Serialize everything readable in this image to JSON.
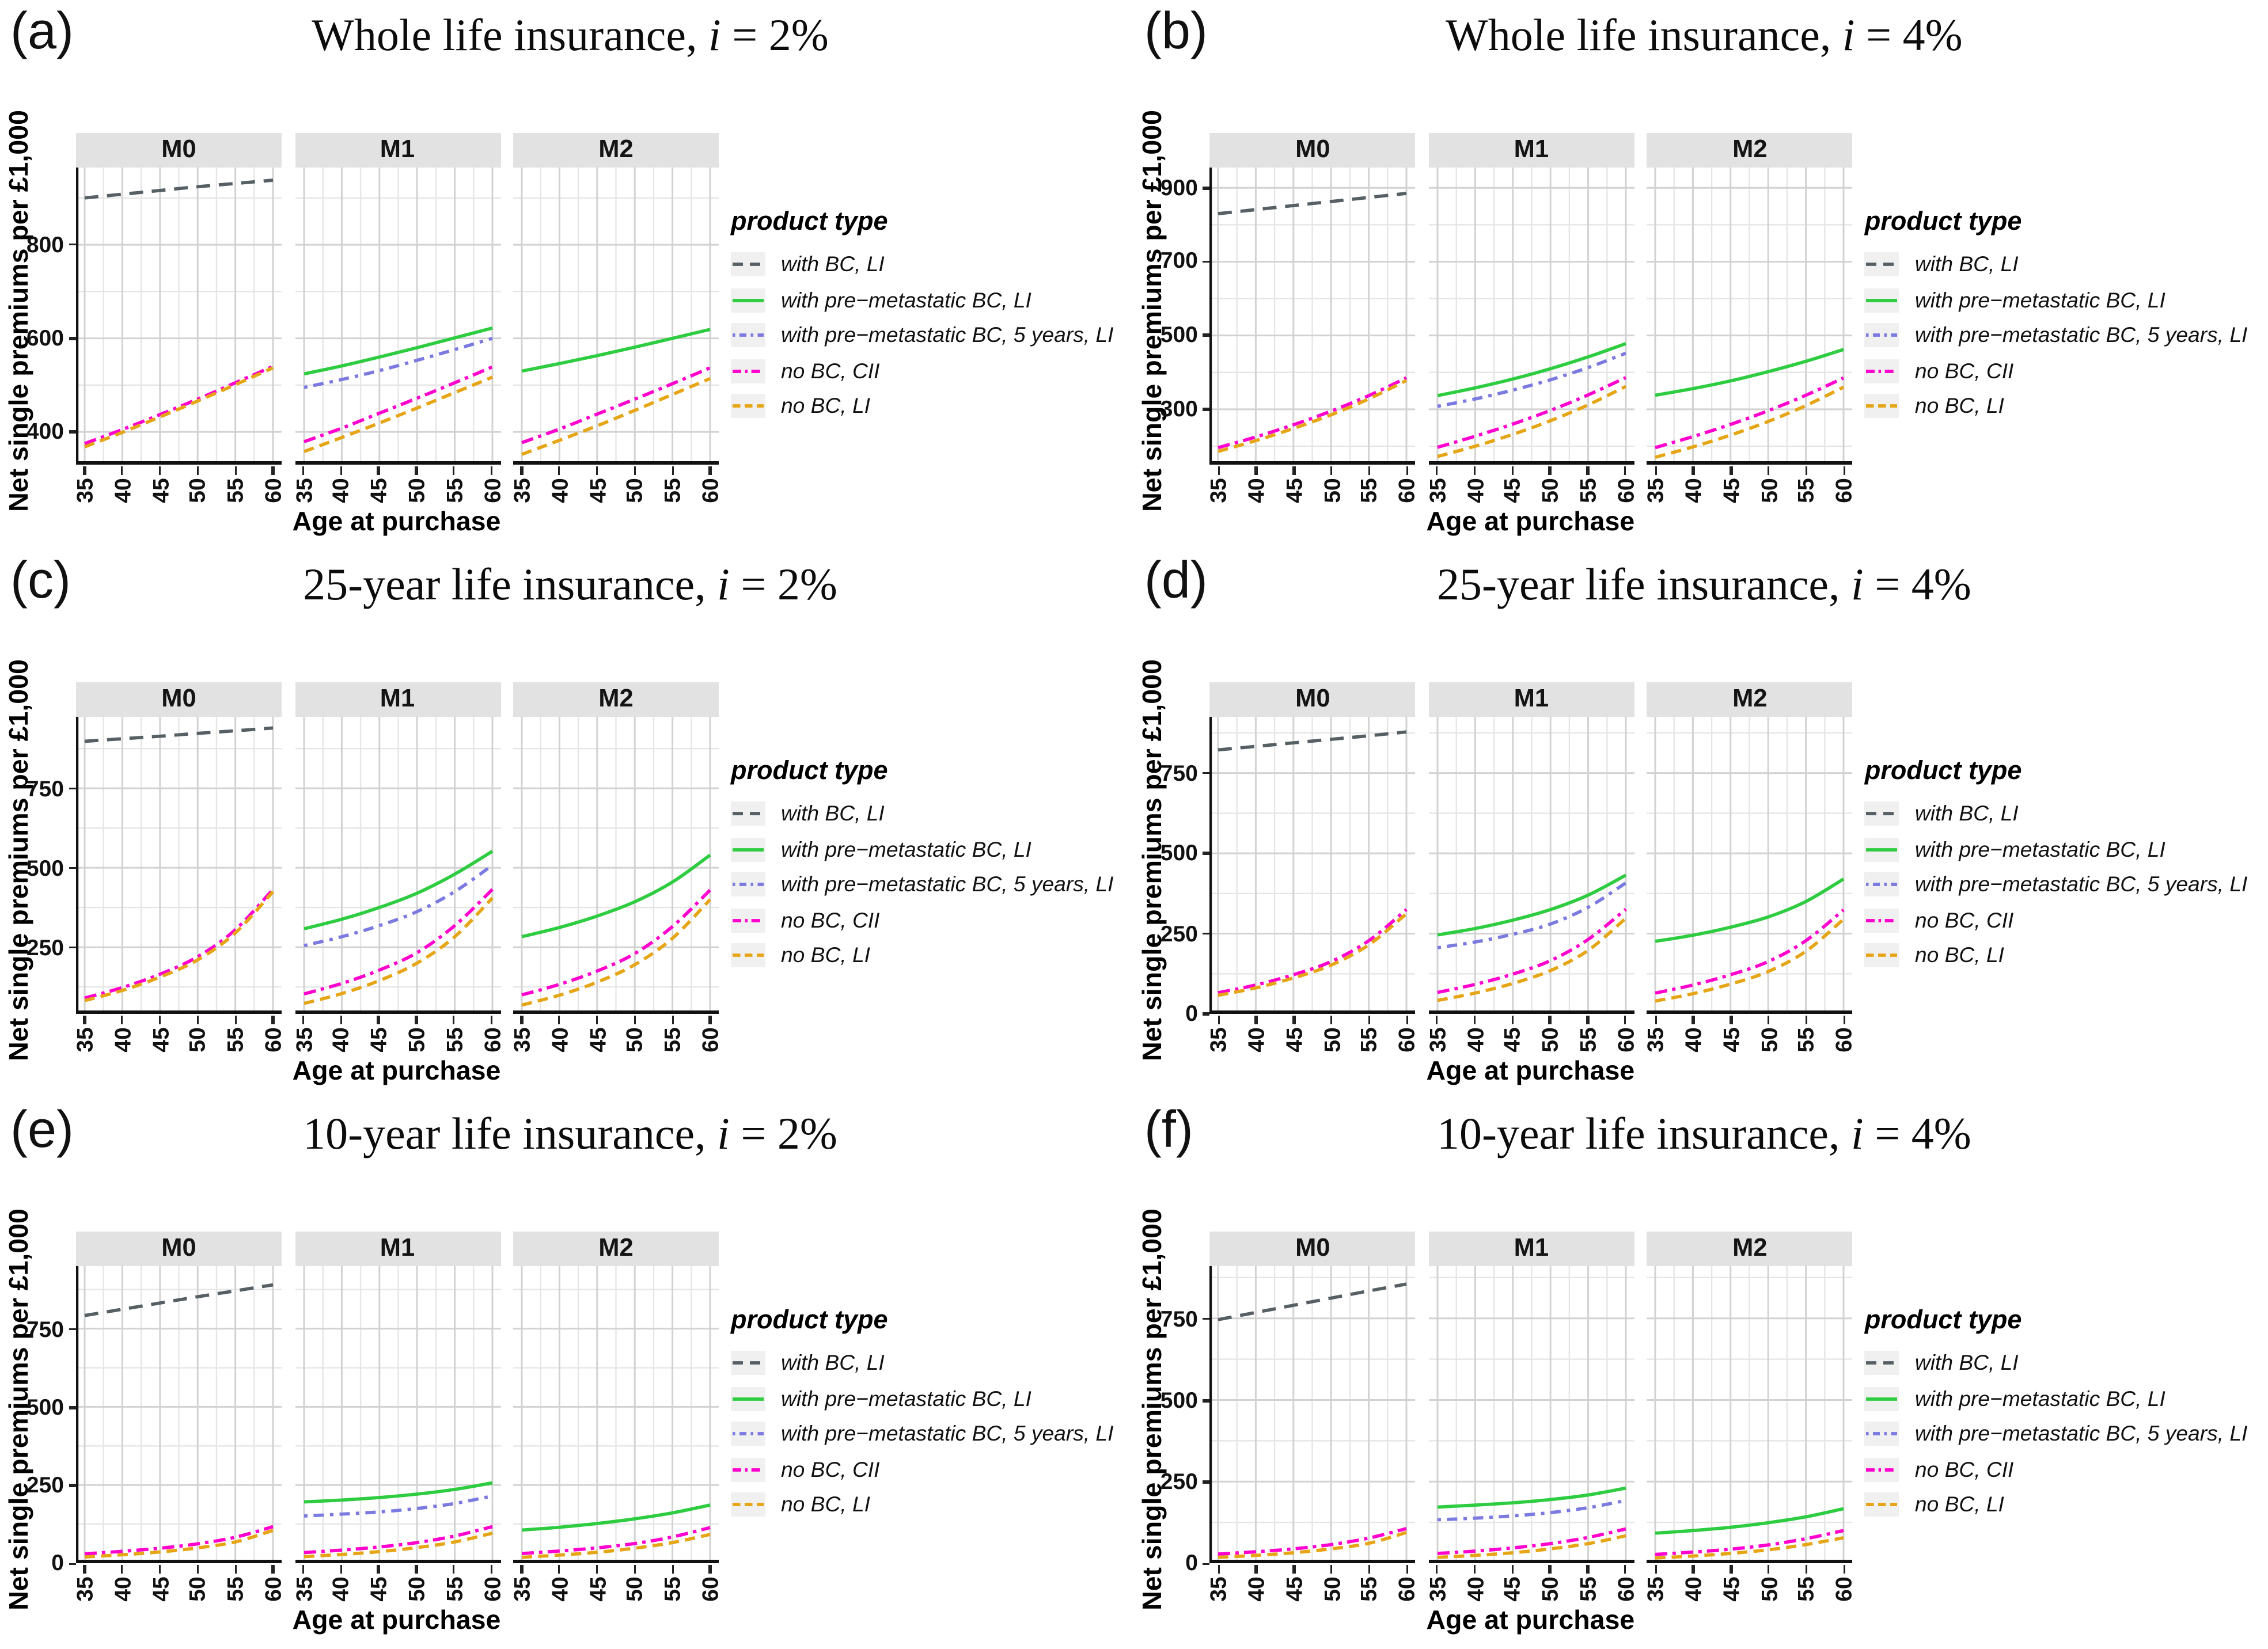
{
  "figure": {
    "description": "Six faceted line charts of net single premiums by age at purchase"
  },
  "axes": {
    "x_label": "Age at purchase",
    "y_label": "Net single premiums per £1,000",
    "x_ticks": [
      35,
      40,
      45,
      50,
      55,
      60
    ]
  },
  "facet_labels": [
    "M0",
    "M1",
    "M2"
  ],
  "legend": {
    "title": "product type",
    "items": [
      {
        "label": "with BC, LI",
        "color": "#566064",
        "dash": [
          8,
          5
        ],
        "key_dash": [
          6,
          4
        ]
      },
      {
        "label": "with pre−metastatic BC, LI",
        "color": "#2ecc40",
        "dash": [],
        "key_dash": []
      },
      {
        "label": "with pre−metastatic BC, 5 years, LI",
        "color": "#7a7ae0",
        "dash": [
          2,
          3.5,
          6,
          3.5
        ],
        "key_dash": [
          1.5,
          2.5,
          4,
          2.5
        ]
      },
      {
        "label": "no BC, CII",
        "color": "#ff00ce",
        "dash": [
          7,
          3,
          2,
          3
        ],
        "key_dash": [
          5,
          2.2,
          1.5,
          2.2
        ]
      },
      {
        "label": "no BC, LI",
        "color": "#e6a515",
        "dash": [
          6,
          3.5
        ],
        "key_dash": [
          4.5,
          2.5
        ]
      }
    ]
  },
  "chart_data": [
    {
      "label": "(a)",
      "title": "Whole life insurance, i = 2%",
      "type": "line",
      "x": [
        35,
        40,
        45,
        50,
        55,
        60
      ],
      "ylim": [
        330,
        965
      ],
      "yticks": [
        400,
        600,
        800
      ],
      "facets": [
        {
          "name": "M0",
          "series": [
            {
              "product": "with BC, LI",
              "values": [
                900,
                908,
                916,
                924,
                931,
                938
              ]
            },
            {
              "product": "no BC, CII",
              "values": [
                375,
                405,
                437,
                470,
                505,
                540
              ]
            },
            {
              "product": "no BC, LI",
              "values": [
                368,
                399,
                432,
                466,
                501,
                537
              ]
            }
          ]
        },
        {
          "name": "M1",
          "series": [
            {
              "product": "with pre−metastatic BC, LI",
              "values": [
                524,
                541,
                560,
                580,
                601,
                622
              ]
            },
            {
              "product": "with pre−metastatic BC, 5 years, LI",
              "values": [
                495,
                512,
                531,
                553,
                576,
                600
              ]
            },
            {
              "product": "no BC, CII",
              "values": [
                379,
                408,
                440,
                472,
                505,
                539
              ]
            },
            {
              "product": "no BC, LI",
              "values": [
                358,
                388,
                419,
                451,
                484,
                517
              ]
            }
          ]
        },
        {
          "name": "M2",
          "series": [
            {
              "product": "with pre−metastatic BC, LI",
              "values": [
                530,
                546,
                563,
                581,
                600,
                619
              ]
            },
            {
              "product": "no BC, CII",
              "values": [
                377,
                406,
                438,
                470,
                503,
                537
              ]
            },
            {
              "product": "no BC, LI",
              "values": [
                352,
                382,
                413,
                446,
                480,
                514
              ]
            }
          ]
        }
      ]
    },
    {
      "label": "(b)",
      "title": "Whole life insurance, i = 4%",
      "type": "line",
      "x": [
        35,
        40,
        45,
        50,
        55,
        60
      ],
      "ylim": [
        150,
        955
      ],
      "yticks": [
        300,
        500,
        700,
        900
      ],
      "facets": [
        {
          "name": "M0",
          "series": [
            {
              "product": "with BC, LI",
              "values": [
                830,
                841,
                852,
                863,
                874,
                885
              ]
            },
            {
              "product": "no BC, CII",
              "values": [
                196,
                225,
                258,
                295,
                337,
                385
              ]
            },
            {
              "product": "no BC, LI",
              "values": [
                186,
                215,
                248,
                285,
                328,
                378
              ]
            }
          ]
        },
        {
          "name": "M1",
          "series": [
            {
              "product": "with pre−metastatic BC, LI",
              "values": [
                337,
                358,
                382,
                410,
                442,
                478
              ]
            },
            {
              "product": "with pre−metastatic BC, 5 years, LI",
              "values": [
                308,
                328,
                352,
                380,
                413,
                452
              ]
            },
            {
              "product": "no BC, CII",
              "values": [
                197,
                227,
                260,
                297,
                339,
                386
              ]
            },
            {
              "product": "no BC, LI",
              "values": [
                172,
                200,
                232,
                269,
                312,
                362
              ]
            }
          ]
        },
        {
          "name": "M2",
          "series": [
            {
              "product": "with pre−metastatic BC, LI",
              "values": [
                338,
                356,
                377,
                402,
                430,
                462
              ]
            },
            {
              "product": "no BC, CII",
              "values": [
                196,
                226,
                259,
                296,
                338,
                385
              ]
            },
            {
              "product": "no BC, LI",
              "values": [
                170,
                198,
                230,
                267,
                310,
                360
              ]
            }
          ]
        }
      ]
    },
    {
      "label": "(c)",
      "title": "25-year life insurance, i = 2%",
      "type": "line",
      "x": [
        35,
        40,
        45,
        50,
        55,
        60
      ],
      "ylim": [
        40,
        975
      ],
      "yticks": [
        250,
        500,
        750
      ],
      "facets": [
        {
          "name": "M0",
          "series": [
            {
              "product": "with BC, LI",
              "values": [
                898,
                906,
                914,
                923,
                931,
                940
              ]
            },
            {
              "product": "no BC, CII",
              "values": [
                90,
                123,
                165,
                220,
                305,
                432
              ]
            },
            {
              "product": "no BC, LI",
              "values": [
                82,
                114,
                156,
                210,
                295,
                425
              ]
            }
          ]
        },
        {
          "name": "M1",
          "series": [
            {
              "product": "with pre−metastatic BC, LI",
              "values": [
                308,
                338,
                375,
                420,
                480,
                552
              ]
            },
            {
              "product": "with pre−metastatic BC, 5 years, LI",
              "values": [
                255,
                283,
                318,
                362,
                425,
                508
              ]
            },
            {
              "product": "no BC, CII",
              "values": [
                103,
                136,
                178,
                233,
                318,
                432
              ]
            },
            {
              "product": "no BC, LI",
              "values": [
                73,
                104,
                145,
                200,
                283,
                405
              ]
            }
          ]
        },
        {
          "name": "M2",
          "series": [
            {
              "product": "with pre−metastatic BC, LI",
              "values": [
                283,
                312,
                348,
                393,
                455,
                540
              ]
            },
            {
              "product": "no BC, CII",
              "values": [
                100,
                133,
                175,
                230,
                315,
                430
              ]
            },
            {
              "product": "no BC, LI",
              "values": [
                68,
                99,
                140,
                195,
                278,
                400
              ]
            }
          ]
        }
      ]
    },
    {
      "label": "(d)",
      "title": "25-year life insurance, i = 4%",
      "type": "line",
      "x": [
        35,
        40,
        45,
        50,
        55,
        60
      ],
      "ylim": [
        0,
        925
      ],
      "yticks": [
        0,
        250,
        500,
        750
      ],
      "facets": [
        {
          "name": "M0",
          "series": [
            {
              "product": "with BC, LI",
              "values": [
                822,
                833,
                844,
                855,
                866,
                878
              ]
            },
            {
              "product": "no BC, CII",
              "values": [
                66,
                90,
                122,
                163,
                228,
                325
              ]
            },
            {
              "product": "no BC, LI",
              "values": [
                58,
                81,
                112,
                152,
                215,
                312
              ]
            }
          ]
        },
        {
          "name": "M1",
          "series": [
            {
              "product": "with pre−metastatic BC, LI",
              "values": [
                246,
                266,
                292,
                325,
                370,
                432
              ]
            },
            {
              "product": "with pre−metastatic BC, 5 years, LI",
              "values": [
                206,
                224,
                248,
                280,
                332,
                408
              ]
            },
            {
              "product": "no BC, CII",
              "values": [
                67,
                92,
                124,
                166,
                232,
                326
              ]
            },
            {
              "product": "no BC, LI",
              "values": [
                42,
                65,
                95,
                135,
                198,
                298
              ]
            }
          ]
        },
        {
          "name": "M2",
          "series": [
            {
              "product": "with pre−metastatic BC, LI",
              "values": [
                226,
                245,
                270,
                302,
                350,
                420
              ]
            },
            {
              "product": "no BC, CII",
              "values": [
                65,
                90,
                122,
                163,
                228,
                324
              ]
            },
            {
              "product": "no BC, LI",
              "values": [
                40,
                63,
                93,
                132,
                195,
                295
              ]
            }
          ]
        }
      ]
    },
    {
      "label": "(e)",
      "title": "10-year life insurance, i = 2%",
      "type": "line",
      "x": [
        35,
        40,
        45,
        50,
        55,
        60
      ],
      "ylim": [
        0,
        950
      ],
      "yticks": [
        0,
        250,
        500,
        750
      ],
      "facets": [
        {
          "name": "M0",
          "series": [
            {
              "product": "with BC, LI",
              "values": [
                792,
                812,
                832,
                852,
                871,
                890
              ]
            },
            {
              "product": "no BC, CII",
              "values": [
                30,
                38,
                48,
                62,
                83,
                117
              ]
            },
            {
              "product": "no BC, LI",
              "values": [
                20,
                27,
                36,
                49,
                68,
                105
              ]
            }
          ]
        },
        {
          "name": "M1",
          "series": [
            {
              "product": "with pre−metastatic BC, LI",
              "values": [
                196,
                202,
                210,
                221,
                236,
                257
              ]
            },
            {
              "product": "with pre−metastatic BC, 5 years, LI",
              "values": [
                151,
                157,
                164,
                175,
                191,
                215
              ]
            },
            {
              "product": "no BC, CII",
              "values": [
                34,
                42,
                52,
                66,
                87,
                117
              ]
            },
            {
              "product": "no BC, LI",
              "values": [
                21,
                28,
                37,
                50,
                68,
                96
              ]
            }
          ]
        },
        {
          "name": "M2",
          "series": [
            {
              "product": "with pre−metastatic BC, LI",
              "values": [
                106,
                115,
                127,
                142,
                161,
                186
              ]
            },
            {
              "product": "no BC, CII",
              "values": [
                31,
                39,
                49,
                63,
                84,
                114
              ]
            },
            {
              "product": "no BC, LI",
              "values": [
                19,
                26,
                35,
                48,
                66,
                92
              ]
            }
          ]
        }
      ]
    },
    {
      "label": "(f)",
      "title": "10-year life insurance, i = 4%",
      "type": "line",
      "x": [
        35,
        40,
        45,
        50,
        55,
        60
      ],
      "ylim": [
        0,
        910
      ],
      "yticks": [
        0,
        250,
        500,
        750
      ],
      "facets": [
        {
          "name": "M0",
          "series": [
            {
              "product": "with BC, LI",
              "values": [
                746,
                768,
                790,
                812,
                834,
                855
              ]
            },
            {
              "product": "no BC, CII",
              "values": [
                28,
                35,
                44,
                57,
                77,
                106
              ]
            },
            {
              "product": "no BC, LI",
              "values": [
                18,
                24,
                32,
                44,
                61,
                94
              ]
            }
          ]
        },
        {
          "name": "M1",
          "series": [
            {
              "product": "with pre−metastatic BC, LI",
              "values": [
                172,
                178,
                185,
                195,
                209,
                230
              ]
            },
            {
              "product": "with pre−metastatic BC, 5 years, LI",
              "values": [
                133,
                138,
                145,
                155,
                170,
                192
              ]
            },
            {
              "product": "no BC, CII",
              "values": [
                30,
                37,
                47,
                60,
                79,
                105
              ]
            },
            {
              "product": "no BC, LI",
              "values": [
                18,
                24,
                32,
                44,
                60,
                84
              ]
            }
          ]
        },
        {
          "name": "M2",
          "series": [
            {
              "product": "with pre−metastatic BC, LI",
              "values": [
                92,
                100,
                110,
                124,
                142,
                167
              ]
            },
            {
              "product": "no BC, CII",
              "values": [
                27,
                34,
                43,
                56,
                75,
                100
              ]
            },
            {
              "product": "no BC, LI",
              "values": [
                16,
                22,
                30,
                41,
                57,
                78
              ]
            }
          ]
        }
      ]
    }
  ]
}
